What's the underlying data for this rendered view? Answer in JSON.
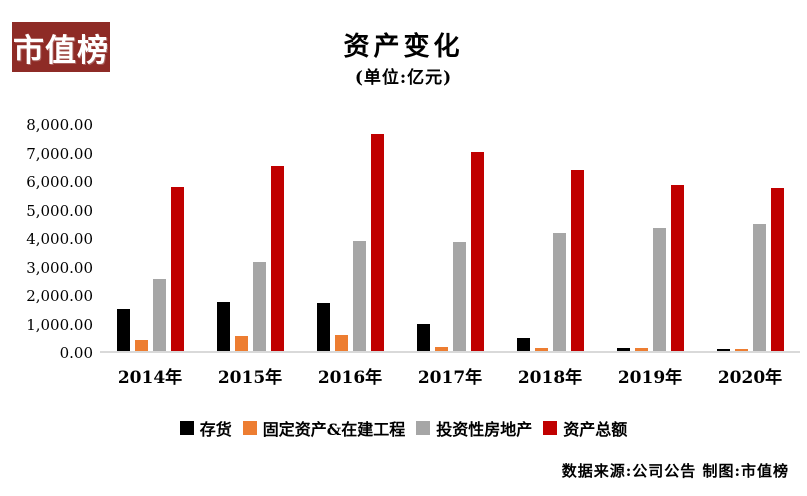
{
  "logo": {
    "text": "市值榜",
    "bg_color": "#8e2b26",
    "text_color": "#ffffff"
  },
  "title": "资产变化",
  "subtitle": "(单位:亿元)",
  "footer": {
    "credit": "数据来源:公司公告  制图:市值榜"
  },
  "colors": {
    "axis_line": "#d9d9d9",
    "series_black": "#000000",
    "series_orange": "#ED7D31",
    "series_gray": "#A6A6A6",
    "series_red": "#C00000"
  },
  "chart_data": {
    "type": "bar",
    "title": "资产变化",
    "subtitle": "(单位:亿元)",
    "xlabel": "",
    "ylabel": "",
    "ylim": [
      0,
      8000
    ],
    "ytick_step": 1000,
    "ytick_labels": [
      "8,000.00",
      "7,000.00",
      "6,000.00",
      "5,000.00",
      "4,000.00",
      "3,000.00",
      "2,000.00",
      "1,000.00",
      "0.00"
    ],
    "grid": false,
    "legend_position": "bottom",
    "categories": [
      "2014年",
      "2015年",
      "2016年",
      "2017年",
      "2018年",
      "2019年",
      "2020年"
    ],
    "series": [
      {
        "name": "存货",
        "color": "#000000",
        "values": [
          1490,
          1720,
          1670,
          950,
          460,
          100,
          60
        ]
      },
      {
        "name": "固定资产&在建工程",
        "color": "#ED7D31",
        "values": [
          400,
          510,
          570,
          130,
          90,
          120,
          80
        ]
      },
      {
        "name": "投资性房地产",
        "color": "#A6A6A6",
        "values": [
          2510,
          3130,
          3870,
          3830,
          4150,
          4330,
          4450
        ]
      },
      {
        "name": "资产总额",
        "color": "#C00000",
        "values": [
          5740,
          6490,
          7620,
          6980,
          6340,
          5830,
          5720
        ]
      }
    ]
  }
}
